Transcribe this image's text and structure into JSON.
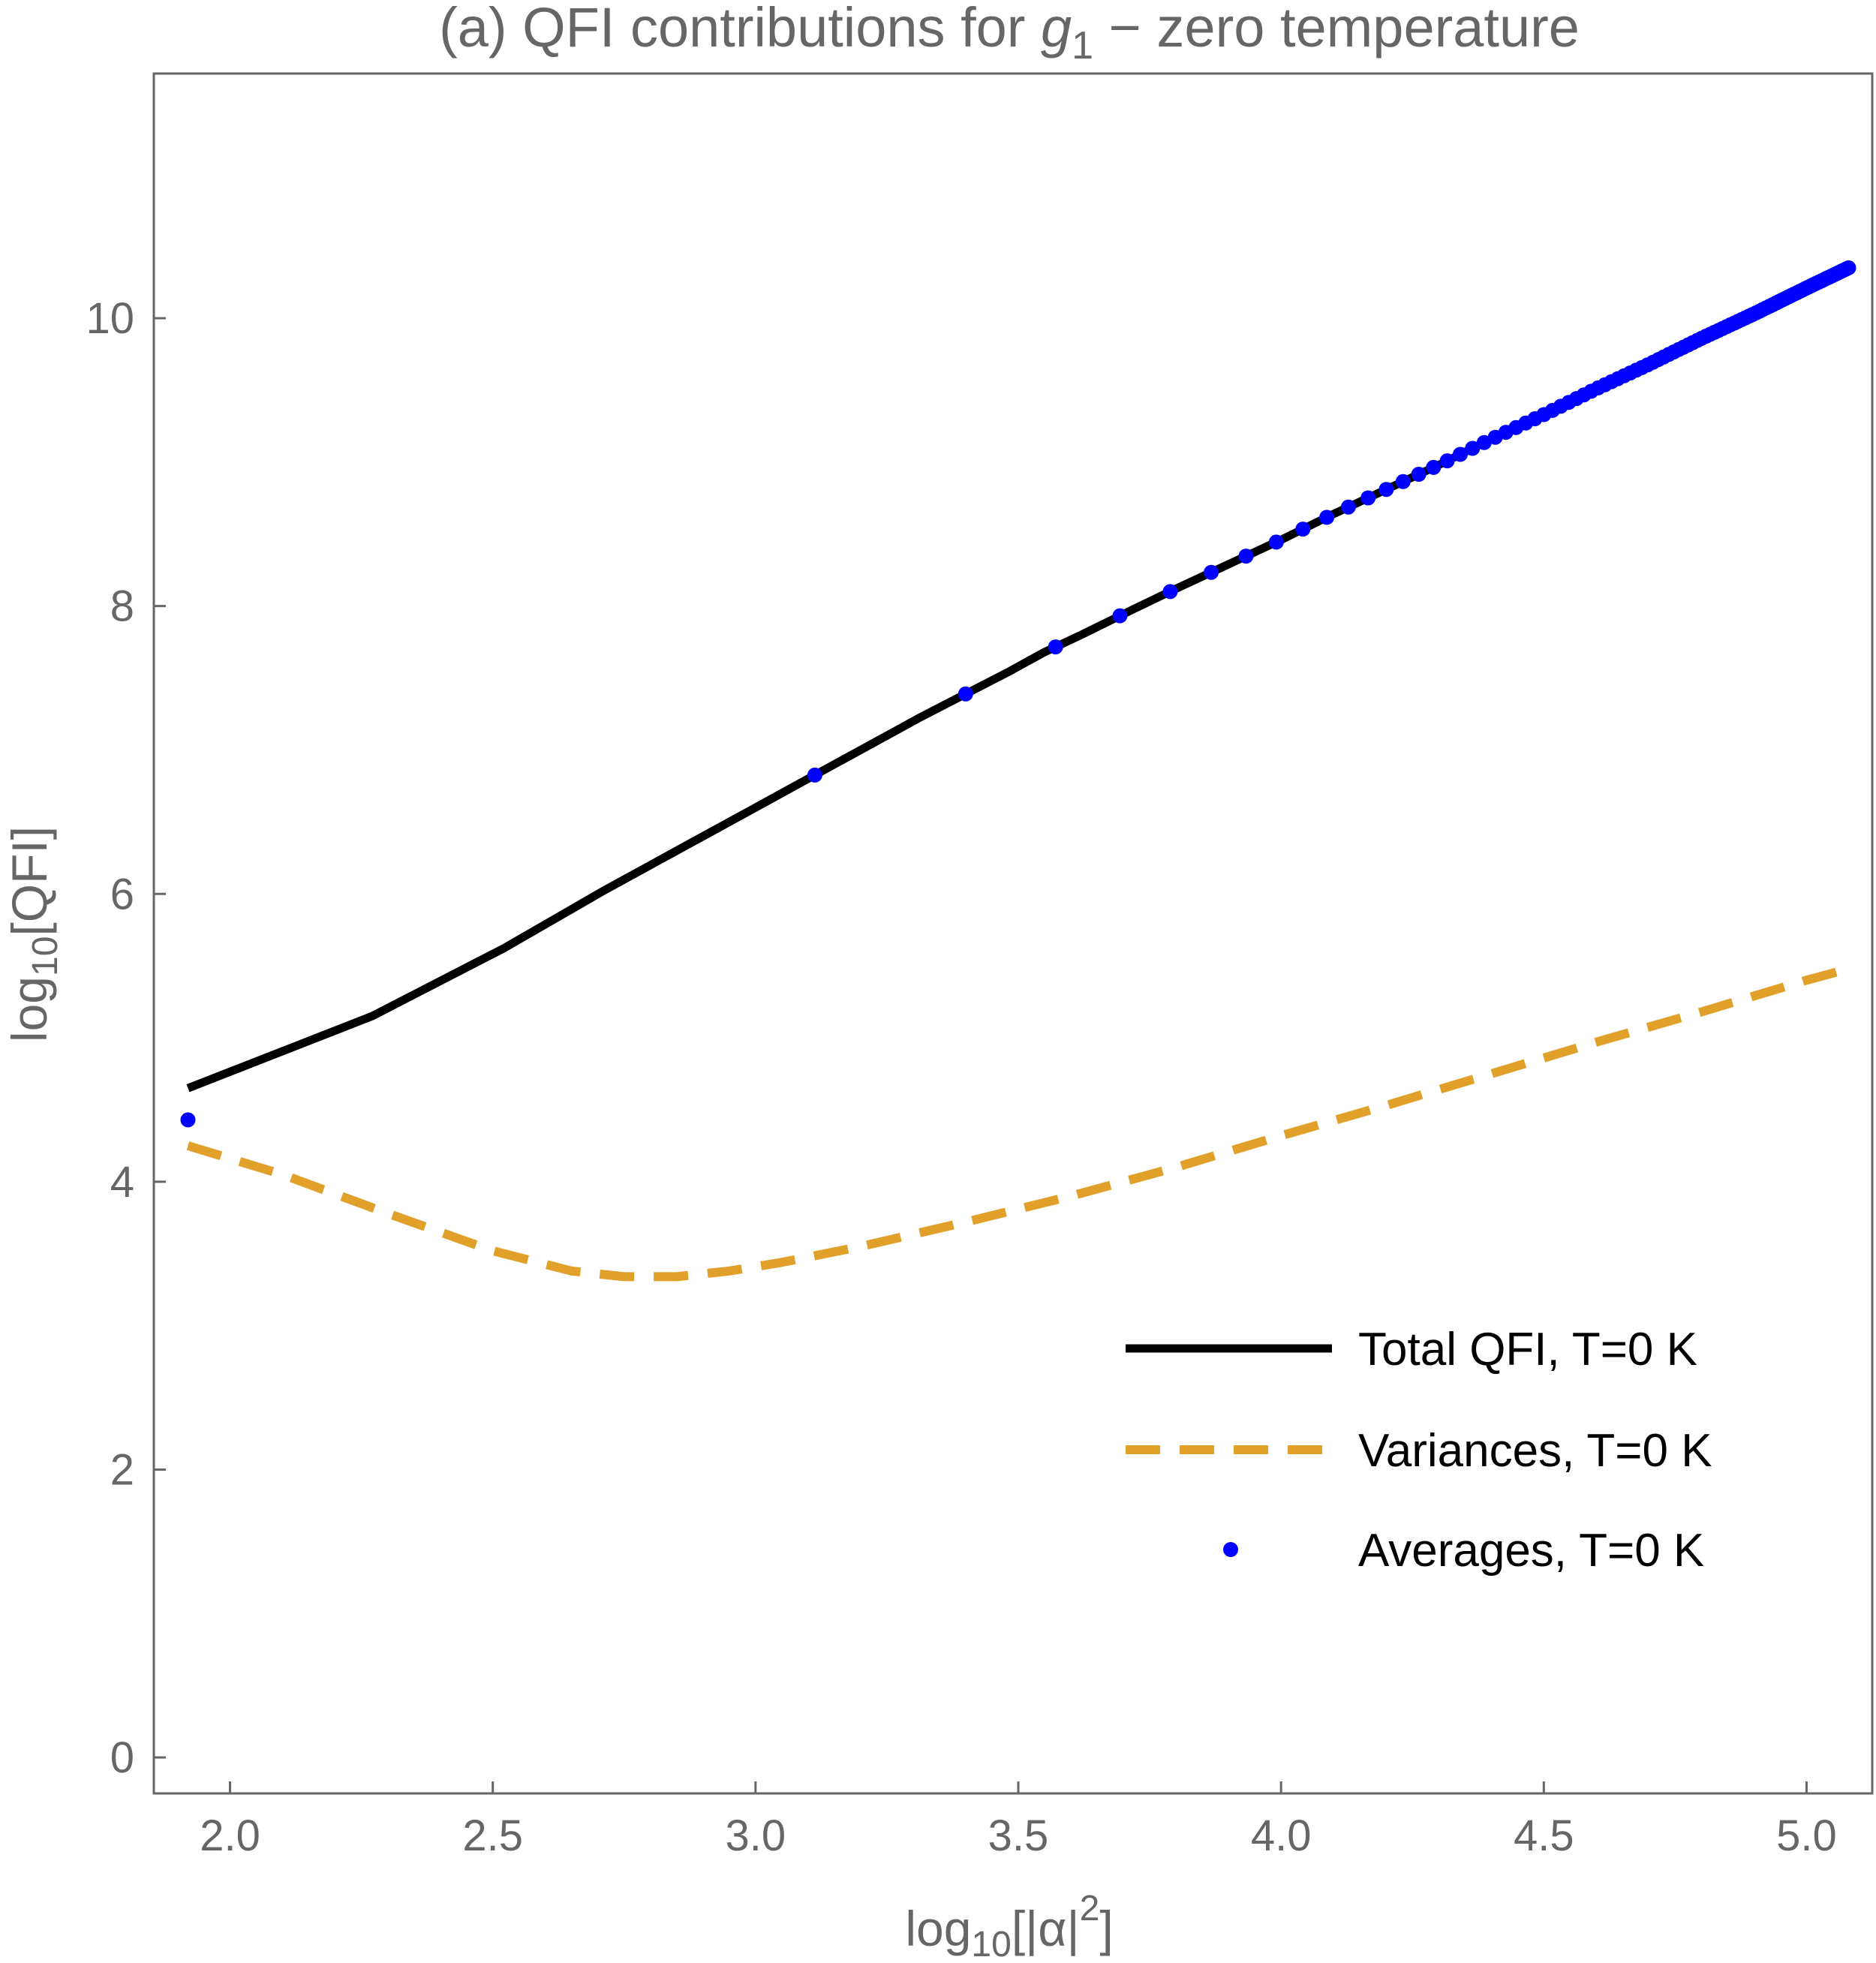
{
  "chart_data": {
    "type": "line",
    "title": {
      "prefix": "(a) QFI contributions for ",
      "symbol": "g",
      "symbol_accent": "~",
      "subscript": "1",
      "suffix": " − zero temperature"
    },
    "xlabel": {
      "prefix": "log",
      "sub": "10",
      "body": "[|α|",
      "sup": "2",
      "close": "]"
    },
    "ylabel": {
      "prefix": "log",
      "sub": "10",
      "body": "[QFI]"
    },
    "xlim": [
      1.855,
      5.125
    ],
    "ylim": [
      -0.25,
      11.7
    ],
    "x_ticks": [
      "2.0",
      "2.5",
      "3.0",
      "3.5",
      "4.0",
      "4.5",
      "5.0"
    ],
    "y_ticks": [
      "0",
      "2",
      "4",
      "6",
      "8",
      "10"
    ],
    "grid": false,
    "legend_position": "bottom-right",
    "series": [
      {
        "name": "Total QFI, T=0 K",
        "style": "solid",
        "color": "#000000",
        "x": [
          1.92,
          2.27,
          2.52,
          2.71,
          2.87,
          3.0,
          3.12,
          3.22,
          3.31,
          3.4,
          3.48,
          3.55,
          3.62,
          3.72,
          3.8,
          3.9,
          4.0,
          4.1,
          4.2,
          4.3,
          4.4,
          4.5,
          4.6,
          4.7,
          4.8,
          4.9,
          5.0,
          5.08
        ],
        "y": [
          4.65,
          5.15,
          5.62,
          6.02,
          6.34,
          6.6,
          6.84,
          7.04,
          7.22,
          7.39,
          7.54,
          7.68,
          7.8,
          7.98,
          8.12,
          8.29,
          8.46,
          8.64,
          8.81,
          8.98,
          9.16,
          9.33,
          9.51,
          9.68,
          9.86,
          10.03,
          10.21,
          10.35
        ]
      },
      {
        "name": "Variances, T=0 K",
        "style": "dashed",
        "color": "#e0a02a",
        "x": [
          1.92,
          2.1,
          2.3,
          2.5,
          2.65,
          2.75,
          2.85,
          2.95,
          3.05,
          3.2,
          3.4,
          3.6,
          3.8,
          4.0,
          4.2,
          4.4,
          4.6,
          4.8,
          5.0,
          5.08
        ],
        "y": [
          4.25,
          4.05,
          3.78,
          3.52,
          3.38,
          3.34,
          3.34,
          3.38,
          3.44,
          3.55,
          3.72,
          3.9,
          4.1,
          4.32,
          4.53,
          4.75,
          4.97,
          5.18,
          5.4,
          5.48
        ]
      },
      {
        "name": "Averages, T=0 K",
        "style": "points",
        "color": "#0000ff",
        "x_min": 1.92,
        "x_max": 5.08,
        "point_count": 100
      }
    ]
  }
}
